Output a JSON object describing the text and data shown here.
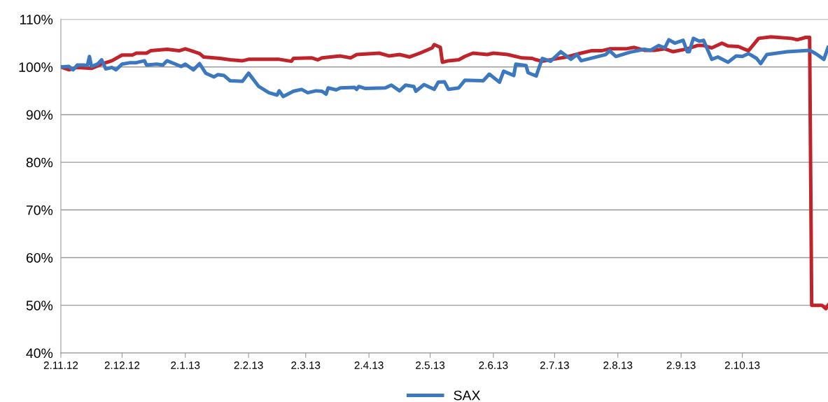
{
  "chart_data": {
    "type": "line",
    "x": [
      "2012-11-02",
      "2012-11-06",
      "2012-11-10",
      "2012-11-17",
      "2012-11-22",
      "2012-11-27",
      "2012-12-02",
      "2012-12-07",
      "2012-12-09",
      "2012-12-14",
      "2012-12-16",
      "2012-12-24",
      "2012-12-30",
      "2013-01-02",
      "2013-01-05",
      "2013-01-09",
      "2013-01-11",
      "2013-01-19",
      "2013-01-24",
      "2013-01-30",
      "2013-02-02",
      "2013-02-11",
      "2013-02-17",
      "2013-02-23",
      "2013-02-24",
      "2013-03-05",
      "2013-03-08",
      "2013-03-10",
      "2013-03-19",
      "2013-03-24",
      "2013-03-27",
      "2013-04-03",
      "2013-04-07",
      "2013-04-12",
      "2013-04-17",
      "2013-04-22",
      "2013-04-27",
      "2013-05-03",
      "2013-05-04",
      "2013-05-07",
      "2013-05-08",
      "2013-05-11",
      "2013-05-16",
      "2013-05-19",
      "2013-05-23",
      "2013-05-30",
      "2013-06-02",
      "2013-06-09",
      "2013-06-16",
      "2013-06-21",
      "2013-06-23",
      "2013-06-26",
      "2013-07-01",
      "2013-07-08",
      "2013-07-15",
      "2013-07-20",
      "2013-07-25",
      "2013-07-29",
      "2013-08-06",
      "2013-08-10",
      "2013-08-15",
      "2013-08-20",
      "2013-08-25",
      "2013-08-29",
      "2013-09-05",
      "2013-09-10",
      "2013-09-13",
      "2013-09-17",
      "2013-09-22",
      "2013-09-25",
      "2013-09-30",
      "2013-10-05",
      "2013-10-10",
      "2013-10-16",
      "2013-10-26",
      "2013-10-29",
      "2013-11-02",
      "2013-11-04",
      "2013-11-05",
      "2013-11-10",
      "2013-11-12",
      "2013-11-13"
    ],
    "xlim": [
      "2012-11-02",
      "2013-11-13"
    ],
    "xticks": [
      {
        "value": "2012-11-02",
        "label": "2.11.12"
      },
      {
        "value": "2012-12-02",
        "label": "2.12.12"
      },
      {
        "value": "2013-01-02",
        "label": "2.1.13"
      },
      {
        "value": "2013-02-02",
        "label": "2.2.13"
      },
      {
        "value": "2013-03-02",
        "label": "2.3.13"
      },
      {
        "value": "2013-04-02",
        "label": "2.4.13"
      },
      {
        "value": "2013-05-02",
        "label": "2.5.13"
      },
      {
        "value": "2013-06-02",
        "label": "2.6.13"
      },
      {
        "value": "2013-07-02",
        "label": "2.7.13"
      },
      {
        "value": "2013-08-02",
        "label": "2.8.13"
      },
      {
        "value": "2013-09-02",
        "label": "2.9.13"
      },
      {
        "value": "2013-10-02",
        "label": "2.10.13"
      }
    ],
    "ylim": [
      40,
      110
    ],
    "yticks": [
      {
        "value": 40,
        "label": "40%"
      },
      {
        "value": 50,
        "label": "50%"
      },
      {
        "value": 60,
        "label": "60%"
      },
      {
        "value": 70,
        "label": "70%"
      },
      {
        "value": 80,
        "label": "80%"
      },
      {
        "value": 90,
        "label": "90%"
      },
      {
        "value": 100,
        "label": "100%"
      },
      {
        "value": 110,
        "label": "110%"
      }
    ],
    "grid": "y",
    "legend": "bottom",
    "marker": "none",
    "line_style": "solid",
    "series": [
      {
        "color": "#c0232a",
        "values": [
          100,
          99.4,
          99.9,
          99.7,
          100.6,
          101.3,
          102.5,
          102.5,
          102.9,
          102.9,
          103.4,
          103.7,
          103.4,
          103.8,
          103.4,
          102.8,
          102.1,
          101.8,
          101.5,
          101.3,
          101.6,
          101.6,
          101.6,
          101.2,
          101.8,
          101.9,
          101.5,
          101.9,
          102.3,
          101.9,
          102.6,
          102.8,
          102.9,
          102.3,
          102.6,
          102.1,
          102.9,
          104.0,
          104.7,
          104.1,
          101.0,
          101.3,
          101.5,
          102.2,
          102.9,
          102.6,
          102.9,
          102.6,
          101.9,
          101.8,
          101.5,
          101.2,
          101.6,
          102.1,
          102.9,
          103.4,
          103.4,
          103.8,
          103.8,
          104.1,
          103.5,
          103.5,
          103.8,
          103.2,
          103.8,
          104.5,
          104.5,
          104.0,
          105.0,
          104.4,
          104.3,
          103.4,
          106.0,
          106.3,
          106.0,
          105.7,
          106.2,
          106.2,
          50.0,
          50.0,
          49.3,
          50.0
        ]
      },
      {
        "name": "SAX",
        "color": "#3c78c0",
        "x": [
          "2012-11-02",
          "2012-11-06",
          "2012-11-08",
          "2012-11-10",
          "2012-11-13",
          "2012-11-15",
          "2012-11-16",
          "2012-11-17",
          "2012-11-20",
          "2012-11-22",
          "2012-11-24",
          "2012-11-27",
          "2012-11-29",
          "2012-12-02",
          "2012-12-06",
          "2012-12-09",
          "2012-12-13",
          "2012-12-14",
          "2012-12-19",
          "2012-12-22",
          "2012-12-24",
          "2012-12-31",
          "2013-01-02",
          "2013-01-06",
          "2013-01-09",
          "2013-01-12",
          "2013-01-16",
          "2013-01-18",
          "2013-01-21",
          "2013-01-24",
          "2013-01-30",
          "2013-02-02",
          "2013-02-07",
          "2013-02-12",
          "2013-02-16",
          "2013-02-17",
          "2013-02-19",
          "2013-02-24",
          "2013-02-28",
          "2013-03-03",
          "2013-03-07",
          "2013-03-10",
          "2013-03-12",
          "2013-03-13",
          "2013-03-17",
          "2013-03-19",
          "2013-03-26",
          "2013-03-27",
          "2013-03-28",
          "2013-03-31",
          "2013-04-10",
          "2013-04-13",
          "2013-04-17",
          "2013-04-20",
          "2013-04-24",
          "2013-04-25",
          "2013-04-29",
          "2013-05-04",
          "2013-05-06",
          "2013-05-09",
          "2013-05-11",
          "2013-05-16",
          "2013-05-19",
          "2013-05-28",
          "2013-05-31",
          "2013-06-05",
          "2013-06-07",
          "2013-06-12",
          "2013-06-13",
          "2013-06-18",
          "2013-06-19",
          "2013-06-23",
          "2013-06-24",
          "2013-06-26",
          "2013-06-30",
          "2013-07-05",
          "2013-07-10",
          "2013-07-13",
          "2013-07-15",
          "2013-07-27",
          "2013-07-29",
          "2013-08-01",
          "2013-08-08",
          "2013-08-15",
          "2013-08-18",
          "2013-08-22",
          "2013-08-25",
          "2013-08-27",
          "2013-08-30",
          "2013-09-03",
          "2013-09-05",
          "2013-09-06",
          "2013-09-08",
          "2013-09-11",
          "2013-09-13",
          "2013-09-17",
          "2013-09-20",
          "2013-09-25",
          "2013-09-29",
          "2013-10-02",
          "2013-10-05",
          "2013-10-09",
          "2013-10-11",
          "2013-10-14",
          "2013-10-19",
          "2013-10-24",
          "2013-11-04",
          "2013-11-07",
          "2013-11-11",
          "2013-11-13"
        ],
        "values": [
          100,
          100.1,
          99.4,
          100.4,
          100.4,
          100.3,
          102.2,
          100.1,
          100.6,
          101.5,
          99.6,
          99.9,
          99.4,
          100.6,
          100.9,
          100.9,
          101.3,
          100.4,
          100.6,
          100.4,
          101.3,
          100.1,
          100.6,
          99.4,
          100.7,
          98.7,
          97.9,
          98.4,
          98.2,
          97.1,
          97.0,
          98.7,
          95.9,
          94.6,
          94.1,
          95.0,
          93.8,
          94.9,
          95.3,
          94.6,
          95.0,
          94.9,
          94.3,
          95.6,
          95.2,
          95.6,
          95.7,
          95.3,
          95.9,
          95.5,
          95.6,
          96.2,
          95.0,
          96.2,
          95.9,
          94.9,
          96.3,
          95.3,
          96.8,
          96.9,
          95.3,
          95.6,
          97.2,
          97.1,
          98.5,
          96.8,
          99.1,
          98.2,
          100.6,
          100.3,
          98.8,
          98.1,
          99.4,
          101.8,
          101.2,
          103.2,
          101.6,
          102.6,
          101.3,
          102.6,
          103.4,
          102.2,
          103.1,
          103.7,
          103.5,
          104.5,
          104.0,
          105.7,
          105.0,
          105.6,
          103.2,
          103.2,
          106.0,
          105.4,
          105.6,
          101.6,
          102.1,
          101.0,
          102.3,
          102.2,
          102.8,
          101.8,
          100.7,
          102.6,
          102.9,
          103.2,
          103.5,
          102.8,
          101.6,
          104.1
        ]
      }
    ]
  }
}
